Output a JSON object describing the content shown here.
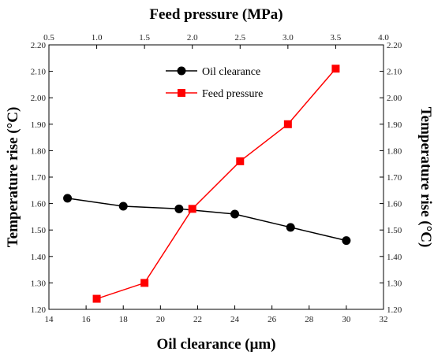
{
  "chart_data": {
    "type": "line",
    "x_bottom_label": "Oil clearance (μm)",
    "x_top_label": "Feed pressure (MPa)",
    "y_label": "Temperature rise (°C)",
    "xlim_bottom": [
      14,
      32
    ],
    "xlim_top": [
      0.5,
      4.0
    ],
    "ylim": [
      1.2,
      2.2
    ],
    "x_bottom_ticks": [
      "14",
      "16",
      "18",
      "20",
      "22",
      "24",
      "26",
      "28",
      "30",
      "32"
    ],
    "x_top_ticks": [
      "0.5",
      "1.0",
      "1.5",
      "2.0",
      "2.5",
      "3.0",
      "3.5",
      "4.0"
    ],
    "y_ticks": [
      "1.20",
      "1.30",
      "1.40",
      "1.50",
      "1.60",
      "1.70",
      "1.80",
      "1.90",
      "2.00",
      "2.10",
      "2.20"
    ],
    "legend_position": "top-center",
    "series": [
      {
        "name": "Oil clearance",
        "axis": "bottom",
        "color": "#000000",
        "marker": "circle",
        "x": [
          15,
          18,
          21,
          24,
          27,
          30
        ],
        "y": [
          1.62,
          1.59,
          1.58,
          1.56,
          1.51,
          1.46
        ]
      },
      {
        "name": "Feed pressure",
        "axis": "top",
        "color": "#ff0000",
        "marker": "square",
        "x": [
          1.0,
          1.5,
          2.0,
          2.5,
          3.0,
          3.5
        ],
        "y": [
          1.24,
          1.3,
          1.58,
          1.76,
          1.9,
          2.11
        ]
      }
    ]
  }
}
